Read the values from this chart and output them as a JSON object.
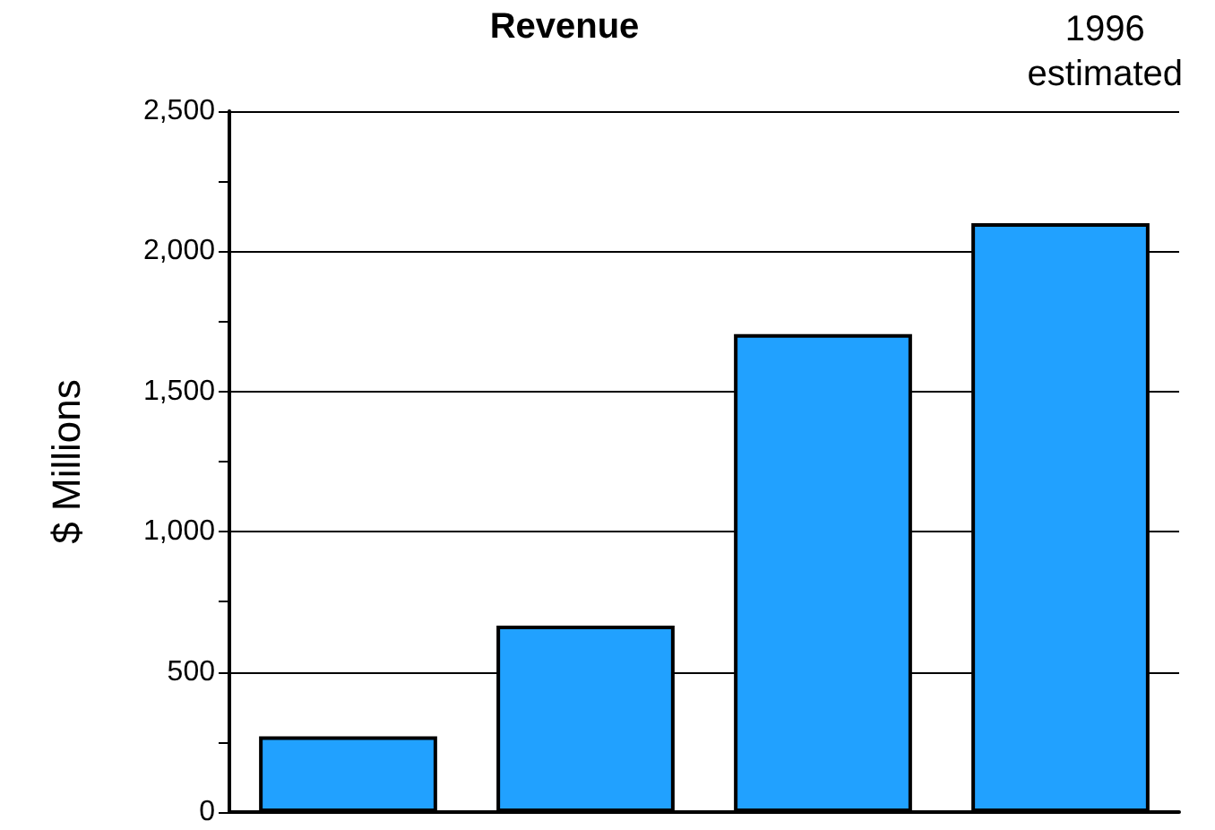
{
  "chart_data": {
    "type": "bar",
    "title": "Revenue",
    "ylabel": "$ Millions",
    "categories": [
      null,
      null,
      null,
      null
    ],
    "values": [
      270,
      665,
      1705,
      2100
    ],
    "color": "#21a1ff",
    "ylim": [
      0,
      2500
    ],
    "yticks": [
      0,
      {
        "value": 250,
        "label": null
      },
      500,
      {
        "value": 750,
        "label": null
      },
      {
        "value": 1000,
        "label": "1,000"
      },
      {
        "value": 1250,
        "label": null
      },
      {
        "value": 1500,
        "label": "1,500"
      },
      {
        "value": 1750,
        "label": null
      },
      {
        "value": 2000,
        "label": "2,000"
      },
      {
        "value": 2250,
        "label": null
      },
      {
        "value": 2500,
        "label": "2,500"
      }
    ],
    "grid": "y",
    "annotations": [
      "1996\nestimated"
    ]
  }
}
